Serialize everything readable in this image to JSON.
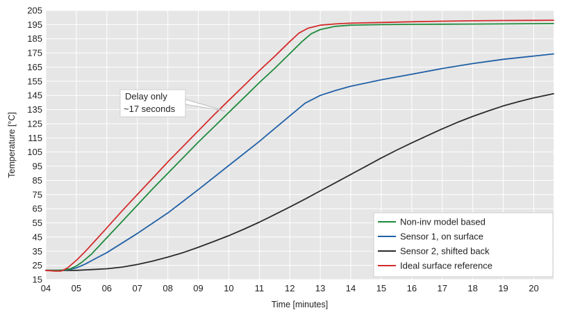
{
  "chart_data": {
    "type": "line",
    "title": "",
    "xlabel": "Time [minutes]",
    "ylabel": "Temperature [°C]",
    "xlim": [
      4.0,
      20.65
    ],
    "ylim": [
      15,
      205
    ],
    "x_ticks": [
      4,
      5,
      6,
      7,
      8,
      9,
      10,
      11,
      12,
      13,
      14,
      15,
      16,
      17,
      18,
      19,
      20
    ],
    "x_tick_labels": [
      "04",
      "05",
      "06",
      "07",
      "08",
      "09",
      "10",
      "11",
      "12",
      "13",
      "14",
      "15",
      "16",
      "17",
      "18",
      "19",
      "20"
    ],
    "y_ticks": [
      15,
      25,
      35,
      45,
      55,
      65,
      75,
      85,
      95,
      105,
      115,
      125,
      135,
      145,
      155,
      165,
      175,
      185,
      195,
      205
    ],
    "y_tick_labels": [
      "15",
      "25",
      "35",
      "45",
      "55",
      "65",
      "75",
      "85",
      "95",
      "105",
      "115",
      "125",
      "135",
      "145",
      "155",
      "165",
      "175",
      "185",
      "195",
      "205"
    ],
    "grid": true,
    "plot_background": "#e6e6e6",
    "legend_position": "bottom-right",
    "series": [
      {
        "name": "Non-inv model based",
        "color": "#1e8a3c",
        "x": [
          4.0,
          4.4,
          4.6,
          4.8,
          5.0,
          5.2,
          5.5,
          6.0,
          6.5,
          7.0,
          7.5,
          8.0,
          8.5,
          9.0,
          9.5,
          10.0,
          10.5,
          11.0,
          11.5,
          12.0,
          12.4,
          12.7,
          13.0,
          13.5,
          14.0,
          15.0,
          16.0,
          17.0,
          18.0,
          19.0,
          20.0,
          20.65
        ],
        "y": [
          21.5,
          21.5,
          21.8,
          22.5,
          24.5,
          27.5,
          33.0,
          44.5,
          56.0,
          67.5,
          79.0,
          90.0,
          101.0,
          112.0,
          122.5,
          133.0,
          143.5,
          154.0,
          164.0,
          174.5,
          183.0,
          188.5,
          191.5,
          193.8,
          194.6,
          195.0,
          195.2,
          195.3,
          195.4,
          195.5,
          195.6,
          195.7
        ]
      },
      {
        "name": "Sensor 1, on surface",
        "color": "#1f5fa6",
        "x": [
          4.0,
          4.4,
          4.6,
          4.8,
          5.0,
          5.3,
          5.6,
          6.0,
          7.0,
          8.0,
          9.0,
          10.0,
          11.0,
          12.0,
          12.5,
          13.0,
          13.5,
          14.0,
          15.0,
          16.0,
          17.0,
          18.0,
          19.0,
          20.0,
          20.65
        ],
        "y": [
          21.5,
          21.5,
          21.7,
          22.2,
          23.2,
          26.0,
          29.5,
          34.0,
          47.5,
          62.0,
          78.5,
          95.5,
          112.5,
          130.5,
          139.5,
          145.0,
          148.5,
          151.5,
          156.0,
          160.0,
          164.0,
          167.5,
          170.5,
          172.8,
          174.3
        ]
      },
      {
        "name": "Sensor 2, shifted back",
        "color": "#2a2a2a",
        "x": [
          4.0,
          4.5,
          5.0,
          5.5,
          6.0,
          6.5,
          7.0,
          7.5,
          8.0,
          8.5,
          9.0,
          9.5,
          10.0,
          10.5,
          11.0,
          11.5,
          12.0,
          12.5,
          13.0,
          13.5,
          14.0,
          14.5,
          15.0,
          15.5,
          16.0,
          16.5,
          17.0,
          17.5,
          18.0,
          18.5,
          19.0,
          19.5,
          20.0,
          20.65
        ],
        "y": [
          21.5,
          21.5,
          21.5,
          22.0,
          22.6,
          23.8,
          25.6,
          28.0,
          30.8,
          34.0,
          37.8,
          41.8,
          46.0,
          50.6,
          55.5,
          60.8,
          66.2,
          71.8,
          77.6,
          83.4,
          89.2,
          95.0,
          100.8,
          106.3,
          111.5,
          116.5,
          121.4,
          126.0,
          130.2,
          134.0,
          137.6,
          140.6,
          143.3,
          146.2
        ]
      },
      {
        "name": "Ideal surface reference",
        "color": "#d42a2a",
        "x": [
          4.0,
          4.3,
          4.5,
          4.7,
          5.0,
          5.3,
          5.6,
          6.0,
          6.5,
          7.0,
          7.5,
          8.0,
          8.5,
          9.0,
          9.5,
          10.0,
          10.5,
          11.0,
          11.5,
          12.0,
          12.3,
          12.6,
          13.0,
          13.5,
          14.0,
          15.0,
          16.0,
          17.0,
          18.0,
          19.0,
          20.0,
          20.65
        ],
        "y": [
          21.5,
          21.0,
          21.0,
          23.0,
          28.5,
          35.0,
          42.0,
          51.5,
          63.5,
          75.0,
          86.5,
          98.0,
          109.0,
          120.0,
          131.0,
          141.5,
          152.0,
          162.5,
          172.5,
          183.0,
          189.0,
          192.5,
          194.6,
          195.5,
          196.0,
          196.5,
          197.0,
          197.4,
          197.7,
          197.9,
          198.0,
          198.1
        ]
      }
    ],
    "annotation": {
      "lines": [
        "Delay only",
        "~17 seconds"
      ],
      "arrow_target": {
        "x": 9.88,
        "y": 134
      }
    }
  }
}
